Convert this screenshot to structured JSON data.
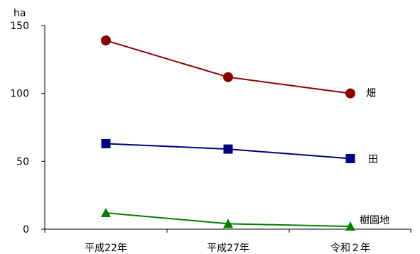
{
  "chart_data": {
    "type": "line",
    "title": "",
    "xlabel": "",
    "ylabel": "",
    "y_unit": "ha",
    "categories": [
      "平成22年",
      "平成27年",
      "令和２年"
    ],
    "ylim": [
      0,
      150
    ],
    "yticks": [
      0,
      50,
      100,
      150
    ],
    "ytick_labels": [
      "0",
      "50",
      "100",
      "150"
    ],
    "grid": false,
    "legend": "none",
    "series": [
      {
        "name": "畑",
        "values": [
          139,
          112,
          100
        ],
        "color": "#8b0000",
        "marker": "circle"
      },
      {
        "name": "田",
        "values": [
          63,
          59,
          52
        ],
        "color": "#000080",
        "marker": "square"
      },
      {
        "name": "樹園地",
        "values": [
          12,
          4,
          2
        ],
        "color": "#008000",
        "marker": "triangle"
      }
    ]
  }
}
